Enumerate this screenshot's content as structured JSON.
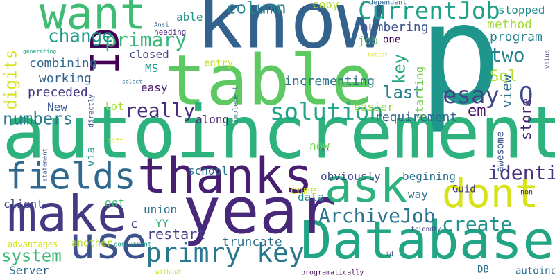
{
  "cloud": {
    "words": [
      {
        "text": "p",
        "color": "#1f968b"
      },
      {
        "text": "know",
        "color": "#33638d"
      },
      {
        "text": "table",
        "color": "#5ec962"
      },
      {
        "text": "autoincrement",
        "color": "#2db27d"
      },
      {
        "text": "Database",
        "color": "#21a585"
      },
      {
        "text": "year",
        "color": "#482878"
      },
      {
        "text": "thanks",
        "color": "#481f70"
      },
      {
        "text": "make",
        "color": "#443983"
      },
      {
        "text": "want",
        "color": "#3fbc73"
      },
      {
        "text": "use",
        "color": "#3b528b"
      },
      {
        "text": "ask",
        "color": "#2db27d"
      },
      {
        "text": "dont",
        "color": "#d8e219"
      },
      {
        "text": "fields",
        "color": "#31688e"
      },
      {
        "text": "ID",
        "color": "#440154"
      },
      {
        "text": "primry key",
        "color": "#2a788e"
      },
      {
        "text": "CurrentJob",
        "color": "#1fa187"
      },
      {
        "text": "solution",
        "color": "#20a386"
      },
      {
        "text": "esay",
        "color": "#404688"
      },
      {
        "text": "Q",
        "color": "#3e4a89"
      },
      {
        "text": "ArchiveJob",
        "color": "#2c728e"
      },
      {
        "text": "identity",
        "color": "#46327e"
      },
      {
        "text": "really",
        "color": "#472d7b"
      },
      {
        "text": "two",
        "color": "#26828e"
      },
      {
        "text": "create",
        "color": "#20928c"
      },
      {
        "text": "primary",
        "color": "#35b779"
      },
      {
        "text": "change",
        "color": "#1e9b8a"
      },
      {
        "text": "column",
        "color": "#24868e"
      },
      {
        "text": "numbers",
        "color": "#2a788e"
      },
      {
        "text": "system",
        "color": "#3aba76"
      },
      {
        "text": "digits",
        "color": "#d8e219"
      },
      {
        "text": "last",
        "color": "#277f8e"
      },
      {
        "text": "key",
        "color": "#22a884"
      },
      {
        "text": "Sql",
        "color": "#b5de2b"
      },
      {
        "text": "em",
        "color": "#471164"
      },
      {
        "text": "view",
        "color": "#2c738e"
      },
      {
        "text": "store",
        "color": "#482475"
      },
      {
        "text": "restart",
        "color": "#433e85"
      },
      {
        "text": "truncate",
        "color": "#2d708e"
      },
      {
        "text": "incrementing",
        "color": "#2d708e"
      },
      {
        "text": "requirement",
        "color": "#31688e"
      },
      {
        "text": "program",
        "color": "#26828e"
      },
      {
        "text": "combining",
        "color": "#31688e"
      },
      {
        "text": "working",
        "color": "#33638d"
      },
      {
        "text": "preceded",
        "color": "#453781"
      },
      {
        "text": "numbering",
        "color": "#3b528b"
      },
      {
        "text": "method",
        "color": "#a2da37"
      },
      {
        "text": "stopped",
        "color": "#228c8d"
      },
      {
        "text": "copy",
        "color": "#b5de2b"
      },
      {
        "text": "able",
        "color": "#21918c"
      },
      {
        "text": "closed",
        "color": "#414487"
      },
      {
        "text": "MS",
        "color": "#1e9b8a"
      },
      {
        "text": "entry",
        "color": "#cae11f"
      },
      {
        "text": "easy",
        "color": "#48186a"
      },
      {
        "text": "New",
        "color": "#3a548c"
      },
      {
        "text": "lot",
        "color": "#a8db34"
      },
      {
        "text": "along",
        "color": "#482979"
      },
      {
        "text": "easier",
        "color": "#8fd744"
      },
      {
        "text": "school",
        "color": "#2c738e"
      },
      {
        "text": "begining",
        "color": "#2c728e"
      },
      {
        "text": "obviously",
        "color": "#3e4a89"
      },
      {
        "text": "union",
        "color": "#2d708e"
      },
      {
        "text": "come",
        "color": "#cae11f"
      },
      {
        "text": "way",
        "color": "#2d708e"
      },
      {
        "text": "Guid",
        "color": "#443a83"
      },
      {
        "text": "data",
        "color": "#23898e"
      },
      {
        "text": "got",
        "color": "#3dbc74"
      },
      {
        "text": "client",
        "color": "#404688"
      },
      {
        "text": "YY",
        "color": "#2fb47c"
      },
      {
        "text": "another",
        "color": "#b5de2b"
      },
      {
        "text": "advantages",
        "color": "#d2e21b"
      },
      {
        "text": "Server",
        "color": "#31688e"
      },
      {
        "text": "DB",
        "color": "#2d708e"
      },
      {
        "text": "autoinc",
        "color": "#2c728e"
      },
      {
        "text": "awesome",
        "color": "#3b528b"
      },
      {
        "text": "starting",
        "color": "#7ad151"
      },
      {
        "text": "job",
        "color": "#5ec962"
      },
      {
        "text": "one",
        "color": "#440154"
      },
      {
        "text": "c",
        "color": "#3e4a89"
      },
      {
        "text": "via",
        "color": "#1e9b8a"
      },
      {
        "text": "now",
        "color": "#73d056"
      },
      {
        "text": "soft",
        "color": "#d8e219"
      },
      {
        "text": "independent",
        "color": "#31688e"
      },
      {
        "text": "needing",
        "color": "#482878"
      },
      {
        "text": "Ansi",
        "color": "#33638d"
      },
      {
        "text": "generating",
        "color": "#20a486"
      },
      {
        "text": "better",
        "color": "#d8e219"
      },
      {
        "text": "value",
        "color": "#3e4989"
      },
      {
        "text": "select",
        "color": "#2d708e"
      },
      {
        "text": "directly",
        "color": "#3b528b"
      },
      {
        "text": "implement",
        "color": "#31688e"
      },
      {
        "text": "statement",
        "color": "#3b528b"
      },
      {
        "text": "max",
        "color": "#3e4a89"
      },
      {
        "text": "non",
        "color": "#482071"
      },
      {
        "text": "friendly",
        "color": "#443983"
      },
      {
        "text": "concurrent",
        "color": "#1f968b"
      },
      {
        "text": "id",
        "color": "#3b528b"
      },
      {
        "text": "without",
        "color": "#cae11f"
      },
      {
        "text": "programatically",
        "color": "#440154"
      }
    ]
  }
}
